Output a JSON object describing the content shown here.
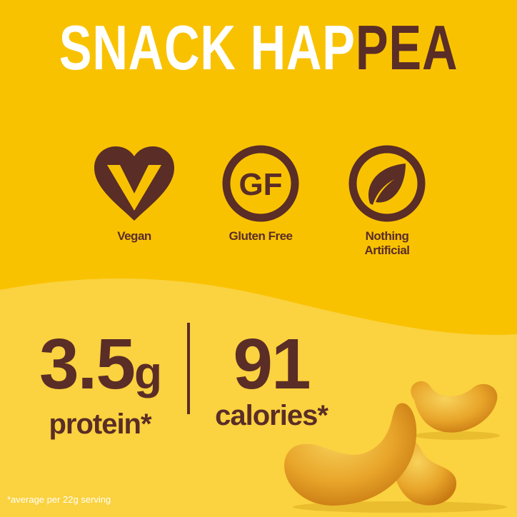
{
  "headline": {
    "part1": "SNACK HAP",
    "part2": "PEA"
  },
  "badges": [
    {
      "icon": "vegan-heart-icon",
      "label": "Vegan"
    },
    {
      "icon": "gf-circle-icon",
      "icon_text": "GF",
      "label": "Gluten Free"
    },
    {
      "icon": "leaf-circle-icon",
      "label_line1": "Nothing",
      "label_line2": "Artificial"
    }
  ],
  "stats": {
    "protein": {
      "value": "3.5",
      "unit": "g",
      "label": "protein*"
    },
    "calories": {
      "value": "91",
      "label": "calories*"
    }
  },
  "footnote": "*average per 22g serving",
  "colors": {
    "top_bg": "#F9C200",
    "bottom_bg": "#FBD23F",
    "brown": "#5A2D27",
    "white": "#FFFFFF"
  }
}
